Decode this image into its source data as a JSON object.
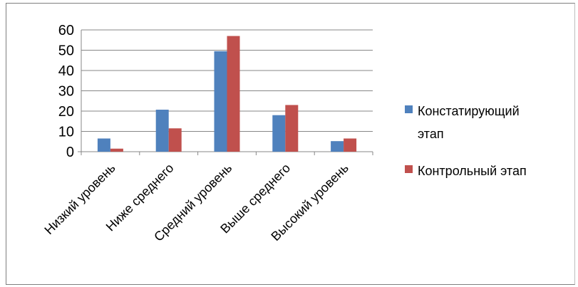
{
  "chart_data": {
    "type": "bar",
    "categories": [
      "Низкий уровень",
      "Ниже среднего",
      "Средний уровень",
      "Выше среднего",
      "Высокий уровень"
    ],
    "series": [
      {
        "name": "Констатирующий этап",
        "values": [
          6.5,
          20.7,
          49.5,
          18,
          5.2
        ],
        "color": "#4f81bd"
      },
      {
        "name": "Контрольный этап",
        "values": [
          1.5,
          11.5,
          57,
          23,
          6.5
        ],
        "color": "#c0504d"
      }
    ],
    "yticks": [
      "0",
      "10",
      "20",
      "30",
      "40",
      "50",
      "60"
    ],
    "ylim": [
      0,
      60
    ],
    "grid": true,
    "legend_position": "right",
    "legend": {
      "series1_line1": "Констатирующий",
      "series1_line2": "этап",
      "series2": "Контрольный этап"
    }
  }
}
